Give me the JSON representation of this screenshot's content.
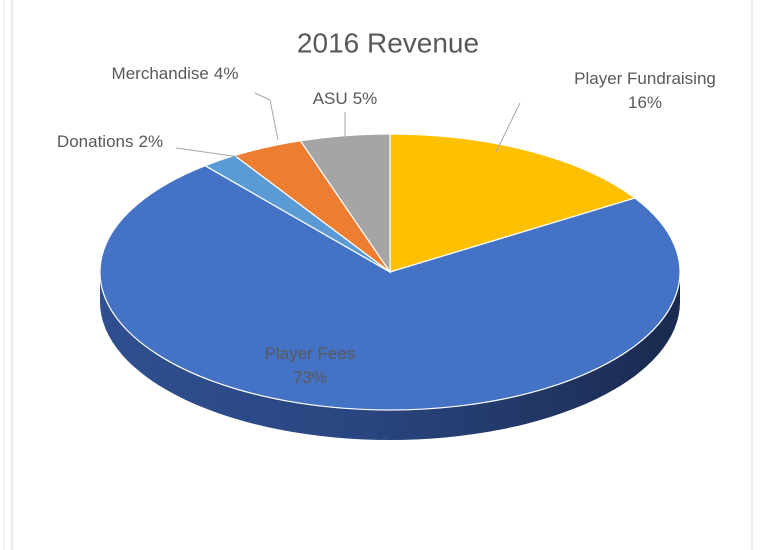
{
  "chart_data": {
    "type": "pie3d",
    "title": "2016 Revenue",
    "categories": [
      "Player Fundraising",
      "Player Fees",
      "Donations",
      "Merchandise",
      "ASU"
    ],
    "values": [
      16,
      73,
      2,
      4,
      5
    ],
    "value_labels": [
      "16%",
      "73%",
      "2%",
      "4%",
      "5%"
    ],
    "colors": [
      "#FFC000",
      "#4472C4",
      "#5B9BD5",
      "#ED7D31",
      "#A5A5A5"
    ]
  }
}
